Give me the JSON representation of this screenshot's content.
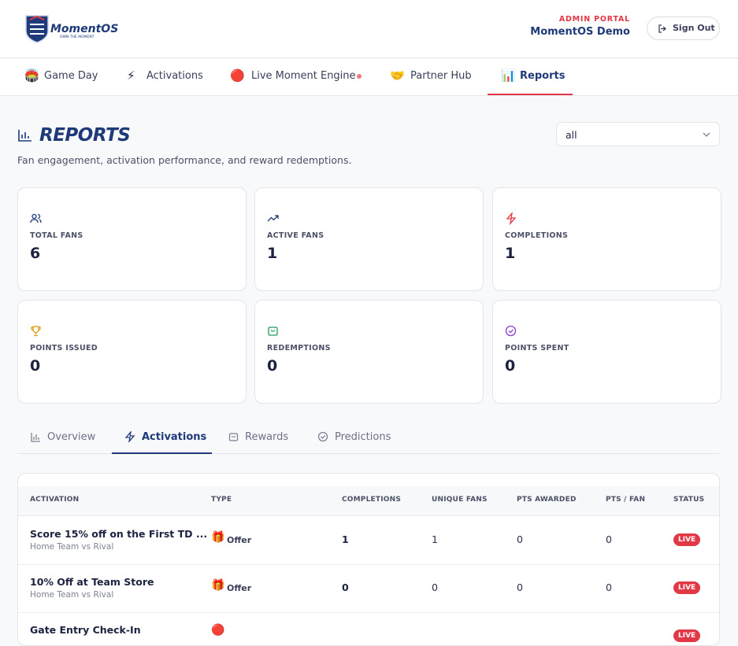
{
  "header": {
    "logo": {
      "name": "MomentOS",
      "tagline": "OWN THE MOMENT"
    },
    "portal": "ADMIN PORTAL",
    "org": "MomentOS Demo",
    "sign_out": "Sign Out"
  },
  "nav": [
    "Game Day",
    "Activations",
    "Live Moment Engine",
    "Partner Hub",
    "Reports"
  ],
  "page": {
    "title": "REPORTS",
    "subtitle": "Fan engagement, activation performance, and reward redemptions.",
    "filter": "all"
  },
  "stats": [
    {
      "label": "TOTAL FANS",
      "value": "6"
    },
    {
      "label": "ACTIVE FANS",
      "value": "1"
    },
    {
      "label": "COMPLETIONS",
      "value": "1"
    },
    {
      "label": "POINTS ISSUED",
      "value": "0"
    },
    {
      "label": "REDEMPTIONS",
      "value": "0"
    },
    {
      "label": "POINTS SPENT",
      "value": "0"
    }
  ],
  "subtabs": [
    "Overview",
    "Activations",
    "Rewards",
    "Predictions"
  ],
  "table": {
    "headers": [
      "ACTIVATION",
      "TYPE",
      "COMPLETIONS",
      "UNIQUE FANS",
      "PTS AWARDED",
      "PTS / FAN",
      "STATUS"
    ],
    "rows": [
      {
        "name": "Score 15% off on the First TD ...",
        "subtitle": "Home Team vs Rival",
        "type": "Offer",
        "completions": "1",
        "unique_fans": "1",
        "pts_awarded": "0",
        "pts_per_fan": "0",
        "status": "LIVE"
      },
      {
        "name": "10% Off at Team Store",
        "subtitle": "Home Team vs Rival",
        "type": "Offer",
        "completions": "0",
        "unique_fans": "0",
        "pts_awarded": "0",
        "pts_per_fan": "0",
        "status": "LIVE"
      },
      {
        "name": "Gate Entry Check-In",
        "status": "LIVE"
      }
    ]
  }
}
